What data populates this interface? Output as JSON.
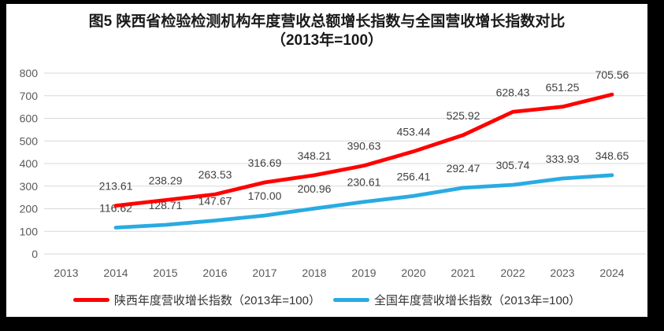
{
  "chart_data": {
    "type": "line",
    "title": "图5  陕西省检验检测机构年度营收总额增长指数与全国营收增长指数对比（2013年=100）",
    "title_lines": [
      "图5  陕西省检验检测机构年度营收总额增长指数与全国营收增长指数对比",
      "（2013年=100）"
    ],
    "x_categories": [
      "2013",
      "2014",
      "2015",
      "2016",
      "2017",
      "2018",
      "2019",
      "2020",
      "2021",
      "2022",
      "2023",
      "2024"
    ],
    "y_ticks": [
      800,
      700,
      600,
      500,
      400,
      300,
      200,
      100,
      0
    ],
    "ylim": [
      0,
      800
    ],
    "grid": "horizontal",
    "legend_position": "bottom",
    "series": [
      {
        "name": "陕西年度营收增长指数（2013年=100）",
        "color": "#ff0000",
        "start_index": 1,
        "values": [
          213.61,
          238.29,
          263.53,
          316.69,
          348.21,
          390.63,
          453.44,
          525.92,
          628.43,
          651.25,
          705.56
        ],
        "labels": [
          "213.61",
          "238.29",
          "263.53",
          "316.69",
          "348.21",
          "390.63",
          "453.44",
          "525.92",
          "628.43",
          "651.25",
          "705.56"
        ]
      },
      {
        "name": "全国年度营收增长指数（2013年=100）",
        "color": "#29abe2",
        "start_index": 1,
        "values": [
          116.62,
          128.71,
          147.67,
          170.0,
          200.96,
          230.61,
          256.41,
          292.47,
          305.74,
          333.93,
          348.65
        ],
        "labels": [
          "116.62",
          "128.71",
          "147.67",
          "170.00",
          "200.96",
          "230.61",
          "256.41",
          "292.47",
          "305.74",
          "333.93",
          "348.65"
        ]
      }
    ],
    "colors": {
      "grid_line": "#d9d9d9",
      "axis_text": "#595959",
      "data_label_text": "#404040",
      "page_background": "#ffffff",
      "frame_background": "#000000"
    }
  }
}
